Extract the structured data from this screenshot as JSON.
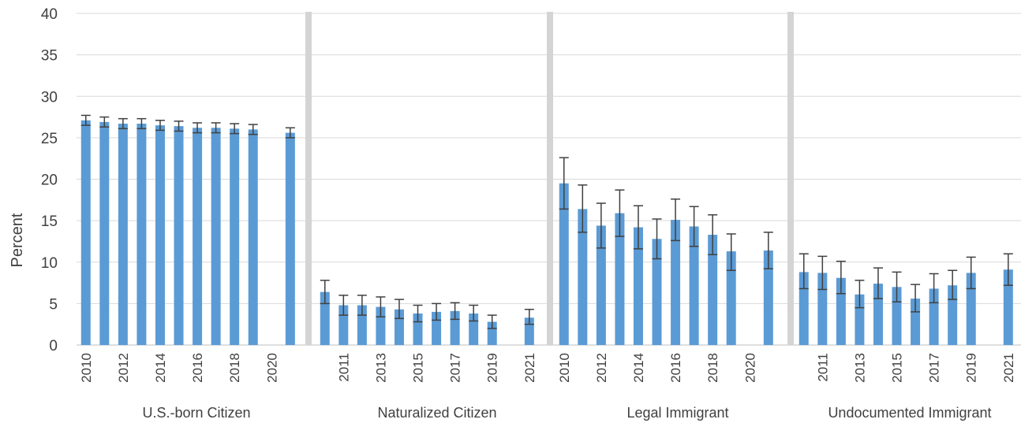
{
  "chart_data": {
    "type": "bar",
    "ylabel": "Percent",
    "ylim": [
      0,
      40
    ],
    "yticks": [
      "0",
      "5",
      "10",
      "15",
      "20",
      "25",
      "30",
      "35",
      "40"
    ],
    "grid": true,
    "legend": "none",
    "colors": {
      "bar": "#5b9bd5",
      "error": "#404040",
      "separator": "#d4d4d4",
      "grid": "#d9d9d9"
    },
    "groups": [
      {
        "name": "U.S.-born Citizen",
        "years": [
          2010,
          2011,
          2012,
          2013,
          2014,
          2015,
          2016,
          2017,
          2018,
          2019,
          2020,
          2021
        ],
        "labeled_years": [
          "2010",
          "2012",
          "2014",
          "2016",
          "2018",
          "2020"
        ],
        "values": [
          27.1,
          26.9,
          26.7,
          26.7,
          26.5,
          26.4,
          26.2,
          26.2,
          26.1,
          26.0,
          null,
          25.6
        ],
        "err_low": [
          26.5,
          26.3,
          26.1,
          26.1,
          25.9,
          25.8,
          25.6,
          25.6,
          25.5,
          25.4,
          null,
          25.0
        ],
        "err_high": [
          27.7,
          27.5,
          27.3,
          27.3,
          27.1,
          27.0,
          26.8,
          26.8,
          26.7,
          26.6,
          null,
          26.2
        ]
      },
      {
        "name": "Naturalized Citizen",
        "years": [
          2010,
          2011,
          2012,
          2013,
          2014,
          2015,
          2016,
          2017,
          2018,
          2019,
          2020,
          2021
        ],
        "labeled_years": [
          "2011",
          "2013",
          "2015",
          "2017",
          "2019",
          "2021"
        ],
        "values": [
          6.4,
          4.8,
          4.8,
          4.6,
          4.3,
          3.8,
          4.0,
          4.1,
          3.8,
          2.8,
          null,
          3.3
        ],
        "err_low": [
          5.0,
          3.6,
          3.6,
          3.4,
          3.2,
          2.8,
          3.0,
          3.1,
          2.9,
          2.0,
          null,
          2.5
        ],
        "err_high": [
          7.8,
          6.0,
          6.0,
          5.8,
          5.5,
          4.8,
          5.0,
          5.1,
          4.8,
          3.6,
          null,
          4.3
        ]
      },
      {
        "name": "Legal Immigrant",
        "years": [
          2010,
          2011,
          2012,
          2013,
          2014,
          2015,
          2016,
          2017,
          2018,
          2019,
          2020,
          2021
        ],
        "labeled_years": [
          "2010",
          "2012",
          "2014",
          "2016",
          "2018",
          "2020"
        ],
        "values": [
          19.5,
          16.4,
          14.4,
          15.9,
          14.2,
          12.8,
          15.1,
          14.3,
          13.3,
          11.3,
          null,
          11.4
        ],
        "err_low": [
          16.4,
          13.6,
          11.7,
          13.1,
          11.6,
          10.4,
          12.6,
          11.9,
          10.9,
          9.0,
          null,
          9.2
        ],
        "err_high": [
          22.6,
          19.3,
          17.1,
          18.7,
          16.8,
          15.2,
          17.6,
          16.7,
          15.7,
          13.4,
          null,
          13.6
        ]
      },
      {
        "name": "Undocumented Immigrant",
        "years": [
          2010,
          2011,
          2012,
          2013,
          2014,
          2015,
          2016,
          2017,
          2018,
          2019,
          2020,
          2021
        ],
        "labeled_years": [
          "2011",
          "2013",
          "2015",
          "2017",
          "2019",
          "2021"
        ],
        "values": [
          8.8,
          8.7,
          8.1,
          6.1,
          7.4,
          7.0,
          5.6,
          6.8,
          7.2,
          8.7,
          null,
          9.1
        ],
        "err_low": [
          6.8,
          6.7,
          6.2,
          4.5,
          5.6,
          5.2,
          4.0,
          5.1,
          5.5,
          6.8,
          null,
          7.2
        ],
        "err_high": [
          11.0,
          10.7,
          10.1,
          7.8,
          9.3,
          8.8,
          7.3,
          8.6,
          9.0,
          10.6,
          null,
          11.0
        ]
      }
    ]
  }
}
